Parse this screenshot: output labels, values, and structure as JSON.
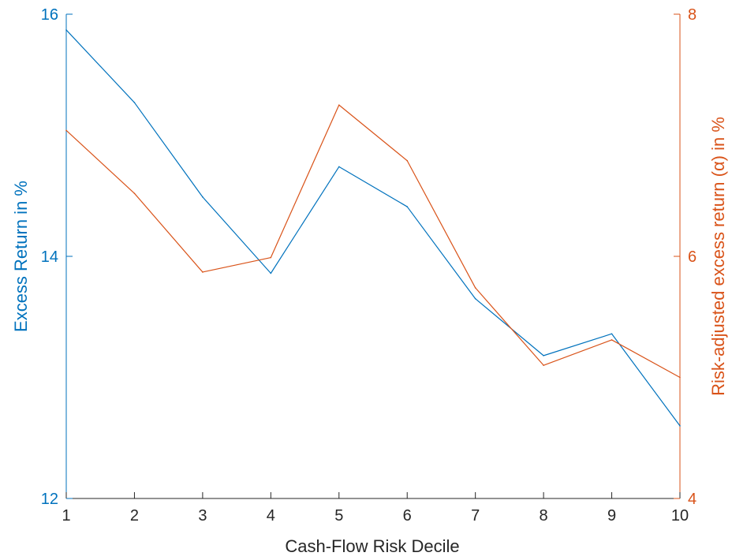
{
  "chart_data": {
    "type": "line",
    "xlabel": "Cash-Flow Risk Decile",
    "ylabel_left": "Excess Return in %",
    "ylabel_right": "Risk-adjusted excess return (α) in %",
    "x": [
      1,
      2,
      3,
      4,
      5,
      6,
      7,
      8,
      9,
      10
    ],
    "xlim": [
      1,
      10
    ],
    "ylim_left": [
      12,
      16
    ],
    "ylim_right": [
      4,
      8
    ],
    "x_ticks": [
      "1",
      "2",
      "3",
      "4",
      "5",
      "6",
      "7",
      "8",
      "9",
      "10"
    ],
    "y_ticks_left": [
      "12",
      "14",
      "16"
    ],
    "y_ticks_right": [
      "4",
      "6",
      "8"
    ],
    "grid": false,
    "series": [
      {
        "axis": "left",
        "color": "#0072BD",
        "values": [
          15.87,
          15.27,
          14.49,
          13.86,
          14.74,
          14.41,
          13.65,
          13.18,
          13.36,
          12.6
        ]
      },
      {
        "axis": "right",
        "color": "#D95319",
        "values": [
          7.04,
          6.52,
          5.87,
          5.99,
          7.25,
          6.79,
          5.74,
          5.1,
          5.31,
          5.0
        ]
      }
    ],
    "left_axis_color": "#0072BD",
    "right_axis_color": "#D95319"
  }
}
